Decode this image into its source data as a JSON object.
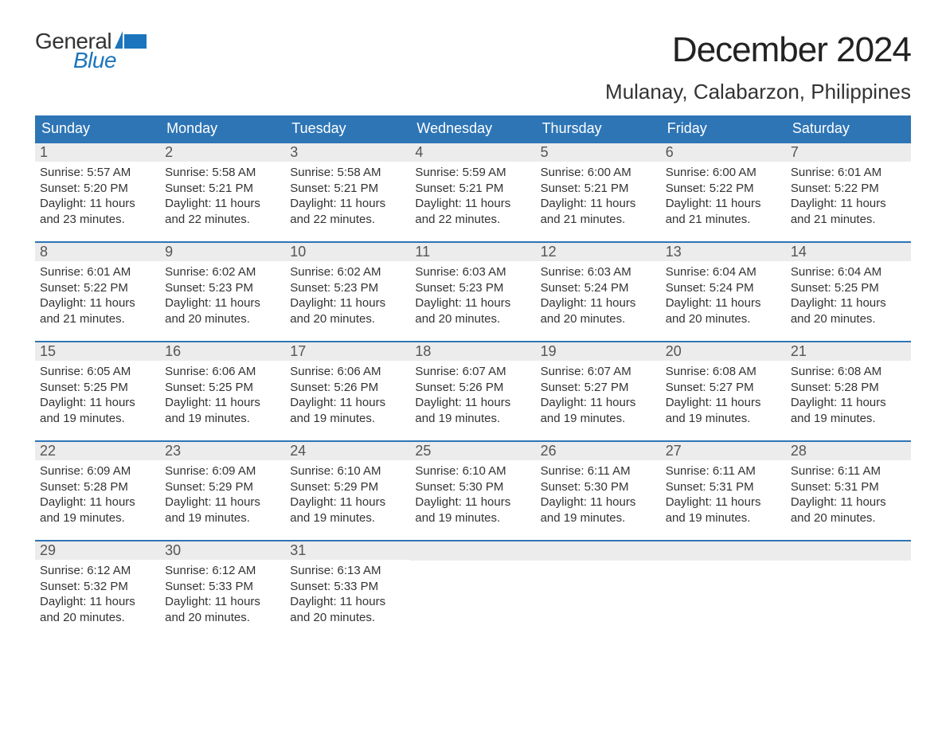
{
  "colors": {
    "brand_blue": "#1c75bc",
    "header_bg": "#2e75b6",
    "header_text": "#ffffff",
    "daynum_bg": "#ececec",
    "daynum_text": "#555555",
    "body_text": "#333333",
    "page_bg": "#ffffff"
  },
  "typography": {
    "month_title_fontsize": 44,
    "location_fontsize": 26,
    "header_fontsize": 18,
    "daynum_fontsize": 18,
    "body_fontsize": 15,
    "logo_fontsize": 28
  },
  "logo": {
    "line1": "General",
    "line2": "Blue"
  },
  "title": "December 2024",
  "location": "Mulanay, Calabarzon, Philippines",
  "weekday_headers": [
    "Sunday",
    "Monday",
    "Tuesday",
    "Wednesday",
    "Thursday",
    "Friday",
    "Saturday"
  ],
  "labels": {
    "sunrise": "Sunrise:",
    "sunset": "Sunset:",
    "daylight": "Daylight:"
  },
  "weeks": [
    [
      {
        "n": "1",
        "sunrise": "5:57 AM",
        "sunset": "5:20 PM",
        "daylight1": "11 hours",
        "daylight2": "and 23 minutes."
      },
      {
        "n": "2",
        "sunrise": "5:58 AM",
        "sunset": "5:21 PM",
        "daylight1": "11 hours",
        "daylight2": "and 22 minutes."
      },
      {
        "n": "3",
        "sunrise": "5:58 AM",
        "sunset": "5:21 PM",
        "daylight1": "11 hours",
        "daylight2": "and 22 minutes."
      },
      {
        "n": "4",
        "sunrise": "5:59 AM",
        "sunset": "5:21 PM",
        "daylight1": "11 hours",
        "daylight2": "and 22 minutes."
      },
      {
        "n": "5",
        "sunrise": "6:00 AM",
        "sunset": "5:21 PM",
        "daylight1": "11 hours",
        "daylight2": "and 21 minutes."
      },
      {
        "n": "6",
        "sunrise": "6:00 AM",
        "sunset": "5:22 PM",
        "daylight1": "11 hours",
        "daylight2": "and 21 minutes."
      },
      {
        "n": "7",
        "sunrise": "6:01 AM",
        "sunset": "5:22 PM",
        "daylight1": "11 hours",
        "daylight2": "and 21 minutes."
      }
    ],
    [
      {
        "n": "8",
        "sunrise": "6:01 AM",
        "sunset": "5:22 PM",
        "daylight1": "11 hours",
        "daylight2": "and 21 minutes."
      },
      {
        "n": "9",
        "sunrise": "6:02 AM",
        "sunset": "5:23 PM",
        "daylight1": "11 hours",
        "daylight2": "and 20 minutes."
      },
      {
        "n": "10",
        "sunrise": "6:02 AM",
        "sunset": "5:23 PM",
        "daylight1": "11 hours",
        "daylight2": "and 20 minutes."
      },
      {
        "n": "11",
        "sunrise": "6:03 AM",
        "sunset": "5:23 PM",
        "daylight1": "11 hours",
        "daylight2": "and 20 minutes."
      },
      {
        "n": "12",
        "sunrise": "6:03 AM",
        "sunset": "5:24 PM",
        "daylight1": "11 hours",
        "daylight2": "and 20 minutes."
      },
      {
        "n": "13",
        "sunrise": "6:04 AM",
        "sunset": "5:24 PM",
        "daylight1": "11 hours",
        "daylight2": "and 20 minutes."
      },
      {
        "n": "14",
        "sunrise": "6:04 AM",
        "sunset": "5:25 PM",
        "daylight1": "11 hours",
        "daylight2": "and 20 minutes."
      }
    ],
    [
      {
        "n": "15",
        "sunrise": "6:05 AM",
        "sunset": "5:25 PM",
        "daylight1": "11 hours",
        "daylight2": "and 19 minutes."
      },
      {
        "n": "16",
        "sunrise": "6:06 AM",
        "sunset": "5:25 PM",
        "daylight1": "11 hours",
        "daylight2": "and 19 minutes."
      },
      {
        "n": "17",
        "sunrise": "6:06 AM",
        "sunset": "5:26 PM",
        "daylight1": "11 hours",
        "daylight2": "and 19 minutes."
      },
      {
        "n": "18",
        "sunrise": "6:07 AM",
        "sunset": "5:26 PM",
        "daylight1": "11 hours",
        "daylight2": "and 19 minutes."
      },
      {
        "n": "19",
        "sunrise": "6:07 AM",
        "sunset": "5:27 PM",
        "daylight1": "11 hours",
        "daylight2": "and 19 minutes."
      },
      {
        "n": "20",
        "sunrise": "6:08 AM",
        "sunset": "5:27 PM",
        "daylight1": "11 hours",
        "daylight2": "and 19 minutes."
      },
      {
        "n": "21",
        "sunrise": "6:08 AM",
        "sunset": "5:28 PM",
        "daylight1": "11 hours",
        "daylight2": "and 19 minutes."
      }
    ],
    [
      {
        "n": "22",
        "sunrise": "6:09 AM",
        "sunset": "5:28 PM",
        "daylight1": "11 hours",
        "daylight2": "and 19 minutes."
      },
      {
        "n": "23",
        "sunrise": "6:09 AM",
        "sunset": "5:29 PM",
        "daylight1": "11 hours",
        "daylight2": "and 19 minutes."
      },
      {
        "n": "24",
        "sunrise": "6:10 AM",
        "sunset": "5:29 PM",
        "daylight1": "11 hours",
        "daylight2": "and 19 minutes."
      },
      {
        "n": "25",
        "sunrise": "6:10 AM",
        "sunset": "5:30 PM",
        "daylight1": "11 hours",
        "daylight2": "and 19 minutes."
      },
      {
        "n": "26",
        "sunrise": "6:11 AM",
        "sunset": "5:30 PM",
        "daylight1": "11 hours",
        "daylight2": "and 19 minutes."
      },
      {
        "n": "27",
        "sunrise": "6:11 AM",
        "sunset": "5:31 PM",
        "daylight1": "11 hours",
        "daylight2": "and 19 minutes."
      },
      {
        "n": "28",
        "sunrise": "6:11 AM",
        "sunset": "5:31 PM",
        "daylight1": "11 hours",
        "daylight2": "and 20 minutes."
      }
    ],
    [
      {
        "n": "29",
        "sunrise": "6:12 AM",
        "sunset": "5:32 PM",
        "daylight1": "11 hours",
        "daylight2": "and 20 minutes."
      },
      {
        "n": "30",
        "sunrise": "6:12 AM",
        "sunset": "5:33 PM",
        "daylight1": "11 hours",
        "daylight2": "and 20 minutes."
      },
      {
        "n": "31",
        "sunrise": "6:13 AM",
        "sunset": "5:33 PM",
        "daylight1": "11 hours",
        "daylight2": "and 20 minutes."
      },
      {
        "empty": true
      },
      {
        "empty": true
      },
      {
        "empty": true
      },
      {
        "empty": true
      }
    ]
  ]
}
